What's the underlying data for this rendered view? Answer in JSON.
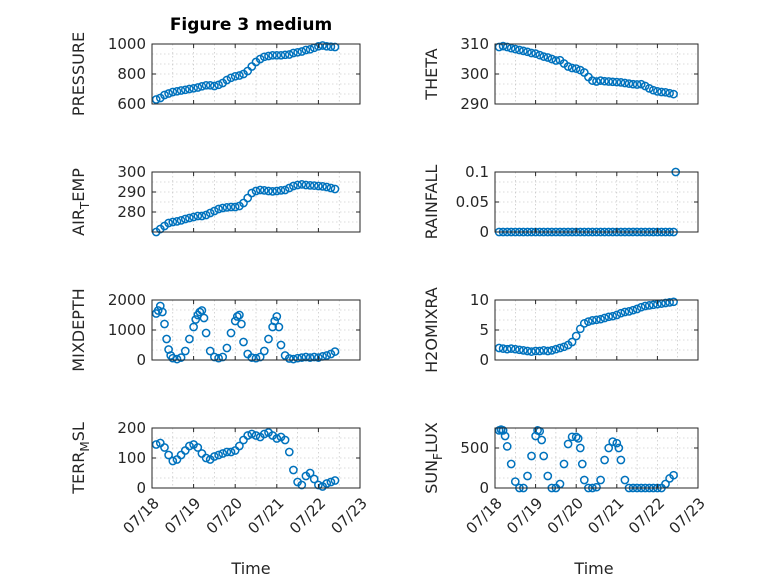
{
  "figure_title": "Figure 3 medium",
  "marker_color": "#0072bd",
  "x_tick_labels": [
    "07/18",
    "07/19",
    "07/20",
    "07/21",
    "07/22",
    "07/23"
  ],
  "x_label": "Time",
  "chart_data": [
    {
      "type": "scatter",
      "name": "pressure",
      "ylabel": "PRESSURE",
      "title": "Figure 3 medium",
      "xlim": [
        0,
        5
      ],
      "ylim": [
        600,
        1000
      ],
      "yticks": [
        600,
        800,
        1000
      ],
      "grid": true,
      "x": [
        0.1,
        0.2,
        0.3,
        0.4,
        0.5,
        0.6,
        0.7,
        0.8,
        0.9,
        1.0,
        1.1,
        1.2,
        1.3,
        1.4,
        1.5,
        1.6,
        1.7,
        1.8,
        1.9,
        2.0,
        2.1,
        2.2,
        2.3,
        2.4,
        2.5,
        2.6,
        2.7,
        2.8,
        2.9,
        3.0,
        3.1,
        3.2,
        3.3,
        3.4,
        3.5,
        3.6,
        3.7,
        3.8,
        3.9,
        4.0,
        4.1,
        4.2,
        4.3,
        4.4
      ],
      "y": [
        630,
        640,
        660,
        670,
        680,
        685,
        690,
        695,
        700,
        705,
        710,
        718,
        725,
        725,
        720,
        728,
        740,
        760,
        775,
        785,
        790,
        800,
        820,
        850,
        880,
        900,
        915,
        920,
        925,
        925,
        925,
        928,
        930,
        940,
        945,
        950,
        960,
        965,
        975,
        985,
        990,
        985,
        982,
        980
      ]
    },
    {
      "type": "scatter",
      "name": "theta",
      "ylabel": "THETA",
      "xlim": [
        0,
        5
      ],
      "ylim": [
        290,
        310
      ],
      "yticks": [
        290,
        300,
        310
      ],
      "grid": true,
      "x": [
        0.1,
        0.2,
        0.3,
        0.4,
        0.5,
        0.6,
        0.7,
        0.8,
        0.9,
        1.0,
        1.1,
        1.2,
        1.3,
        1.4,
        1.5,
        1.6,
        1.7,
        1.8,
        1.9,
        2.0,
        2.1,
        2.2,
        2.3,
        2.4,
        2.5,
        2.6,
        2.7,
        2.8,
        2.9,
        3.0,
        3.1,
        3.2,
        3.3,
        3.4,
        3.5,
        3.6,
        3.7,
        3.8,
        3.9,
        4.0,
        4.1,
        4.2,
        4.3,
        4.4
      ],
      "y": [
        309,
        309.3,
        309,
        308.6,
        308.3,
        308,
        307.7,
        307.4,
        307,
        306.8,
        306.3,
        305.8,
        305.5,
        305,
        304.5,
        304.6,
        303.5,
        302.5,
        302,
        301.8,
        301.3,
        300.5,
        299,
        297.8,
        297.5,
        297.8,
        297.6,
        297.5,
        297.4,
        297.3,
        297.2,
        297,
        296.8,
        296.6,
        296.5,
        296.6,
        296,
        295.2,
        294.6,
        294.2,
        294,
        293.9,
        293.6,
        293.3
      ]
    },
    {
      "type": "scatter",
      "name": "air_temp",
      "ylabel": "AIR_TEMP",
      "xlim": [
        0,
        5
      ],
      "ylim": [
        270,
        300
      ],
      "yticks": [
        280,
        290,
        300
      ],
      "grid": true,
      "x": [
        0.1,
        0.2,
        0.3,
        0.4,
        0.5,
        0.6,
        0.7,
        0.8,
        0.9,
        1.0,
        1.1,
        1.2,
        1.3,
        1.4,
        1.5,
        1.6,
        1.7,
        1.8,
        1.9,
        2.0,
        2.1,
        2.2,
        2.3,
        2.4,
        2.5,
        2.6,
        2.7,
        2.8,
        2.9,
        3.0,
        3.1,
        3.2,
        3.3,
        3.4,
        3.5,
        3.6,
        3.7,
        3.8,
        3.9,
        4.0,
        4.1,
        4.2,
        4.3,
        4.4
      ],
      "y": [
        270,
        271.5,
        273,
        274.5,
        275,
        275.3,
        275.8,
        276.5,
        277,
        277.5,
        278,
        278,
        278.5,
        279.5,
        280.5,
        281.5,
        282,
        282.3,
        282.5,
        282.5,
        283,
        284.5,
        287,
        289.5,
        290.5,
        291,
        290.8,
        290.5,
        290.3,
        290.5,
        290.8,
        291,
        292,
        293,
        293.5,
        293.8,
        293.5,
        293.3,
        293.2,
        293,
        292.8,
        292.5,
        292,
        291.5
      ]
    },
    {
      "type": "scatter",
      "name": "rainfall",
      "ylabel": "RAINFALL",
      "xlim": [
        0,
        5
      ],
      "ylim": [
        0,
        0.1
      ],
      "yticks": [
        0,
        0.05,
        0.1
      ],
      "grid": true,
      "x": [
        0.1,
        0.2,
        0.3,
        0.4,
        0.5,
        0.6,
        0.7,
        0.8,
        0.9,
        1.0,
        1.1,
        1.2,
        1.3,
        1.4,
        1.5,
        1.6,
        1.7,
        1.8,
        1.9,
        2.0,
        2.1,
        2.2,
        2.3,
        2.4,
        2.5,
        2.6,
        2.7,
        2.8,
        2.9,
        3.0,
        3.1,
        3.2,
        3.3,
        3.4,
        3.5,
        3.6,
        3.7,
        3.8,
        3.9,
        4.0,
        4.1,
        4.2,
        4.3,
        4.4,
        4.45
      ],
      "y": [
        0,
        0,
        0,
        0,
        0,
        0,
        0,
        0,
        0,
        0,
        0,
        0,
        0,
        0,
        0,
        0,
        0,
        0,
        0,
        0,
        0,
        0,
        0,
        0,
        0,
        0,
        0,
        0,
        0,
        0,
        0,
        0,
        0,
        0,
        0,
        0,
        0,
        0,
        0,
        0,
        0,
        0,
        0,
        0,
        0.1
      ]
    },
    {
      "type": "scatter",
      "name": "mixdepth",
      "ylabel": "MIXDEPTH",
      "xlim": [
        0,
        5
      ],
      "ylim": [
        0,
        2000
      ],
      "yticks": [
        0,
        1000,
        2000
      ],
      "grid": true,
      "x": [
        0.1,
        0.15,
        0.2,
        0.25,
        0.3,
        0.35,
        0.4,
        0.45,
        0.5,
        0.6,
        0.7,
        0.8,
        0.9,
        1.0,
        1.05,
        1.1,
        1.15,
        1.2,
        1.25,
        1.3,
        1.4,
        1.5,
        1.6,
        1.7,
        1.8,
        1.9,
        2.0,
        2.05,
        2.1,
        2.15,
        2.2,
        2.3,
        2.4,
        2.5,
        2.6,
        2.7,
        2.8,
        2.9,
        2.95,
        3.0,
        3.05,
        3.1,
        3.2,
        3.3,
        3.4,
        3.5,
        3.6,
        3.7,
        3.8,
        3.9,
        4.0,
        4.1,
        4.2,
        4.3,
        4.4
      ],
      "y": [
        1550,
        1650,
        1800,
        1600,
        1200,
        700,
        350,
        150,
        60,
        30,
        80,
        300,
        700,
        1100,
        1350,
        1500,
        1600,
        1650,
        1400,
        900,
        300,
        100,
        60,
        100,
        400,
        900,
        1300,
        1450,
        1500,
        1200,
        600,
        200,
        80,
        60,
        100,
        300,
        700,
        1100,
        1300,
        1450,
        1100,
        500,
        150,
        50,
        30,
        60,
        80,
        100,
        80,
        100,
        80,
        120,
        150,
        200,
        280
      ]
    },
    {
      "type": "scatter",
      "name": "h2omixra",
      "ylabel": "H2OMIXRA",
      "xlim": [
        0,
        5
      ],
      "ylim": [
        0,
        10
      ],
      "yticks": [
        0,
        5,
        10
      ],
      "grid": true,
      "x": [
        0.1,
        0.2,
        0.3,
        0.4,
        0.5,
        0.6,
        0.7,
        0.8,
        0.9,
        1.0,
        1.1,
        1.2,
        1.3,
        1.4,
        1.5,
        1.6,
        1.7,
        1.8,
        1.9,
        2.0,
        2.1,
        2.2,
        2.3,
        2.4,
        2.5,
        2.6,
        2.7,
        2.8,
        2.9,
        3.0,
        3.1,
        3.2,
        3.3,
        3.4,
        3.5,
        3.6,
        3.7,
        3.8,
        3.9,
        4.0,
        4.1,
        4.2,
        4.3,
        4.4
      ],
      "y": [
        2,
        1.9,
        1.8,
        1.9,
        1.8,
        1.7,
        1.6,
        1.5,
        1.4,
        1.5,
        1.5,
        1.6,
        1.5,
        1.6,
        1.8,
        2,
        2.2,
        2.5,
        3,
        4,
        5.2,
        6.1,
        6.4,
        6.6,
        6.7,
        6.8,
        7,
        7.2,
        7.3,
        7.5,
        7.8,
        8,
        8.1,
        8.3,
        8.5,
        8.8,
        9,
        9.1,
        9.2,
        9.3,
        9.4,
        9.5,
        9.6,
        9.7
      ]
    },
    {
      "type": "scatter",
      "name": "terr_msl",
      "ylabel": "TERR_MSL",
      "xlim": [
        0,
        5
      ],
      "ylim": [
        0,
        200
      ],
      "yticks": [
        0,
        100,
        200
      ],
      "grid": true,
      "x": [
        0.1,
        0.2,
        0.3,
        0.4,
        0.5,
        0.6,
        0.7,
        0.8,
        0.9,
        1.0,
        1.1,
        1.2,
        1.3,
        1.4,
        1.5,
        1.6,
        1.7,
        1.8,
        1.9,
        2.0,
        2.1,
        2.2,
        2.3,
        2.4,
        2.5,
        2.6,
        2.7,
        2.8,
        2.9,
        3.0,
        3.1,
        3.2,
        3.3,
        3.4,
        3.5,
        3.6,
        3.7,
        3.8,
        3.9,
        4.0,
        4.1,
        4.2,
        4.3,
        4.4
      ],
      "y": [
        145,
        150,
        135,
        110,
        90,
        95,
        110,
        125,
        140,
        145,
        135,
        115,
        100,
        95,
        105,
        110,
        115,
        120,
        120,
        125,
        140,
        160,
        175,
        180,
        175,
        170,
        180,
        185,
        175,
        165,
        170,
        160,
        120,
        60,
        20,
        10,
        40,
        50,
        30,
        10,
        5,
        15,
        20,
        25
      ]
    },
    {
      "type": "scatter",
      "name": "sun_flux",
      "ylabel": "SUN_FLUX",
      "xlim": [
        0,
        5
      ],
      "ylim": [
        0,
        750
      ],
      "yticks": [
        0,
        500
      ],
      "grid": true,
      "x": [
        0.1,
        0.15,
        0.2,
        0.25,
        0.3,
        0.4,
        0.5,
        0.6,
        0.7,
        0.8,
        0.9,
        1.0,
        1.05,
        1.1,
        1.15,
        1.2,
        1.3,
        1.4,
        1.5,
        1.6,
        1.7,
        1.8,
        1.9,
        2.0,
        2.05,
        2.1,
        2.15,
        2.2,
        2.3,
        2.4,
        2.5,
        2.6,
        2.7,
        2.8,
        2.9,
        3.0,
        3.05,
        3.1,
        3.2,
        3.3,
        3.4,
        3.5,
        3.6,
        3.7,
        3.8,
        3.9,
        4.0,
        4.1,
        4.2,
        4.3,
        4.4
      ],
      "y": [
        720,
        730,
        720,
        650,
        520,
        300,
        80,
        0,
        0,
        150,
        400,
        650,
        720,
        710,
        600,
        400,
        150,
        0,
        0,
        50,
        300,
        550,
        640,
        640,
        620,
        500,
        300,
        100,
        0,
        0,
        10,
        100,
        350,
        500,
        580,
        560,
        500,
        350,
        100,
        0,
        0,
        0,
        0,
        0,
        0,
        0,
        0,
        0,
        50,
        120,
        160
      ]
    }
  ]
}
